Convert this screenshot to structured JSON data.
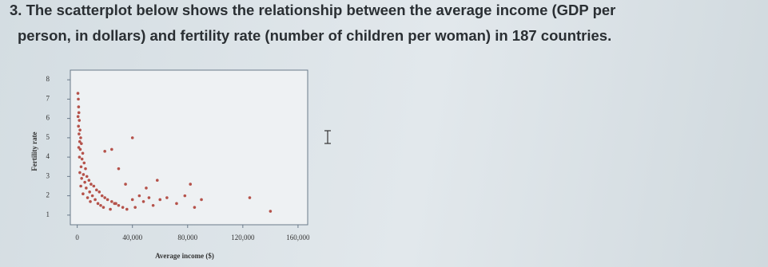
{
  "question": {
    "number": "3.",
    "lines": [
      "The scatterplot below shows the relationship between the average income (GDP per",
      "person, in dollars) and fertility rate (number of children per woman) in 187 countries."
    ]
  },
  "chart_data": {
    "type": "scatter",
    "x_label": "Average income ($)",
    "y_label": "Fertility rate",
    "xlim": [
      -5000,
      167000
    ],
    "ylim": [
      0.5,
      8.5
    ],
    "xticks": [
      0,
      {
        "value": 40000,
        "label": "40,000"
      },
      {
        "value": 80000,
        "label": "80,000"
      },
      {
        "value": 120000,
        "label": "120,000"
      },
      {
        "value": 160000,
        "label": "160,000"
      }
    ],
    "yticks": [
      1,
      2,
      3,
      4,
      5,
      6,
      7,
      8
    ],
    "series": [
      {
        "color": "#b5524a",
        "x": [
          500,
          800,
          1000,
          1200,
          600,
          1500,
          900,
          2000,
          1300,
          2500,
          1800,
          3000,
          1100,
          2200,
          4000,
          1600,
          3500,
          5000,
          2800,
          6000,
          1900,
          4500,
          7000,
          3200,
          8500,
          5500,
          10000,
          2600,
          12000,
          6500,
          14000,
          9000,
          16000,
          4200,
          11000,
          18000,
          7500,
          20000,
          13000,
          22000,
          9500,
          25000,
          15000,
          28000,
          17000,
          30000,
          19000,
          33000,
          24000,
          36000,
          27000,
          40000,
          42000,
          45000,
          48000,
          52000,
          55000,
          60000,
          65000,
          72000,
          78000,
          85000,
          90000,
          50000,
          58000,
          30000,
          35000,
          20000,
          25000,
          40000,
          82000,
          125000,
          140000
        ],
        "values": [
          7.3,
          7.0,
          6.6,
          6.3,
          6.1,
          5.9,
          5.6,
          5.4,
          5.2,
          5.0,
          4.8,
          4.7,
          4.5,
          4.4,
          4.2,
          4.0,
          3.9,
          3.7,
          3.5,
          3.4,
          3.2,
          3.1,
          3.0,
          2.9,
          2.8,
          2.7,
          2.6,
          2.5,
          2.5,
          2.4,
          2.3,
          2.2,
          2.2,
          2.1,
          2.0,
          2.0,
          1.9,
          1.9,
          1.8,
          1.8,
          1.7,
          1.7,
          1.6,
          1.6,
          1.5,
          1.5,
          1.4,
          1.4,
          1.3,
          1.3,
          1.6,
          1.8,
          1.4,
          2.0,
          1.7,
          1.9,
          1.5,
          1.8,
          1.9,
          1.6,
          2.0,
          1.4,
          1.8,
          2.4,
          2.8,
          3.4,
          2.6,
          4.3,
          4.4,
          5.0,
          2.6,
          1.9,
          1.2
        ]
      }
    ]
  }
}
